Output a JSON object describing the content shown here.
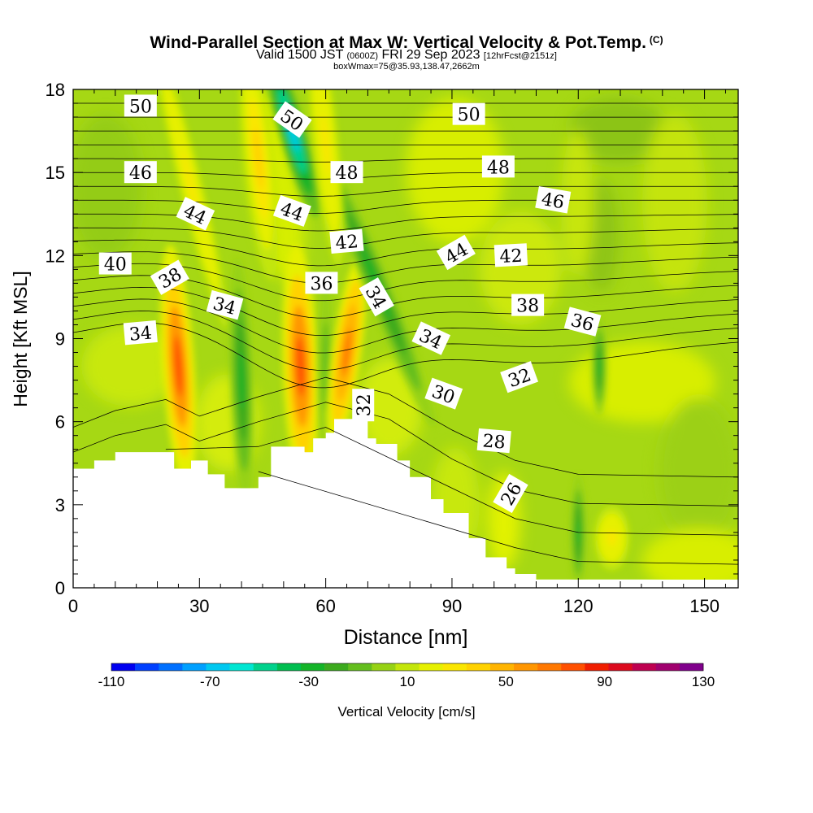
{
  "header": {
    "title": "Wind-Parallel Section at Max W: Vertical Velocity & Pot.Temp.",
    "title_mark": "(C)",
    "valid_main": "Valid 1500 JST",
    "valid_utc": "(0600Z)",
    "valid_date": "FRI 29 Sep 2023",
    "forecast_info": "[12hrFcst@2151z]",
    "box_info": "boxWmax=75@35.93,138.47,2662m"
  },
  "chart_data": {
    "type": "heatmap",
    "xlabel": "Distance [nm]",
    "ylabel": "Height [Kft MSL]",
    "xlim": [
      0,
      158
    ],
    "ylim": [
      0,
      18
    ],
    "x_ticks": [
      0,
      30,
      60,
      90,
      120,
      150
    ],
    "y_ticks": [
      0,
      3,
      6,
      9,
      12,
      15,
      18
    ],
    "colorbar": {
      "label": "Vertical Velocity [cm/s]",
      "range": [
        -110,
        130
      ],
      "step": 10,
      "tick_labels": [
        "-110",
        "-70",
        "-30",
        "10",
        "50",
        "90",
        "130"
      ],
      "colors": [
        "#0000f0",
        "#0040ff",
        "#0070ff",
        "#00a0ff",
        "#00c8f0",
        "#00e6d2",
        "#00d28c",
        "#00be50",
        "#14b428",
        "#3caa1e",
        "#64be1e",
        "#96d214",
        "#c3e60a",
        "#e6f000",
        "#fae600",
        "#ffd200",
        "#ffb400",
        "#ff9600",
        "#ff7800",
        "#ff5000",
        "#f01e00",
        "#dc0a1e",
        "#be0050",
        "#a0006e",
        "#80008c"
      ]
    },
    "terrain_height_kft": [
      [
        0,
        4.3
      ],
      [
        5,
        4.6
      ],
      [
        10,
        4.9
      ],
      [
        20,
        4.9
      ],
      [
        24,
        4.3
      ],
      [
        28,
        4.6
      ],
      [
        32,
        4.1
      ],
      [
        36,
        3.6
      ],
      [
        41,
        3.6
      ],
      [
        44,
        4.0
      ],
      [
        47,
        5.1
      ],
      [
        52,
        5.1
      ],
      [
        55,
        4.9
      ],
      [
        57,
        5.4
      ],
      [
        60,
        5.6
      ],
      [
        62,
        6.1
      ],
      [
        67,
        6.2
      ],
      [
        70,
        5.4
      ],
      [
        72,
        5.2
      ],
      [
        77,
        4.6
      ],
      [
        80,
        4.0
      ],
      [
        85,
        3.2
      ],
      [
        88,
        2.7
      ],
      [
        94,
        1.8
      ],
      [
        98,
        1.1
      ],
      [
        103,
        0.7
      ],
      [
        105,
        0.5
      ],
      [
        110,
        0.3
      ],
      [
        158,
        0.3
      ]
    ],
    "velocity_features": [
      {
        "x_nm": 25,
        "z_kft": 8.0,
        "value_cms": 80
      },
      {
        "x_nm": 28,
        "z_kft": 14.5,
        "value_cms": 30
      },
      {
        "x_nm": 40,
        "z_kft": 7.5,
        "value_cms": -30
      },
      {
        "x_nm": 44,
        "z_kft": 15.5,
        "value_cms": 40
      },
      {
        "x_nm": 52,
        "z_kft": 16.5,
        "value_cms": -70
      },
      {
        "x_nm": 54,
        "z_kft": 8.0,
        "value_cms": 80
      },
      {
        "x_nm": 60,
        "z_kft": 8.0,
        "value_cms": -10
      },
      {
        "x_nm": 65,
        "z_kft": 8.5,
        "value_cms": 75
      },
      {
        "x_nm": 72,
        "z_kft": 11.0,
        "value_cms": -30
      },
      {
        "x_nm": 60,
        "z_kft": 16.0,
        "value_cms": 30
      },
      {
        "x_nm": 125,
        "z_kft": 8.0,
        "value_cms": -30
      },
      {
        "x_nm": 120,
        "z_kft": 2.0,
        "value_cms": -30
      },
      {
        "x_nm": 128,
        "z_kft": 1.8,
        "value_cms": 30
      }
    ],
    "theta_labels": [
      {
        "text": "50",
        "x_nm": 16,
        "z_kft": 17.4
      },
      {
        "text": "50",
        "x_nm": 52,
        "z_kft": 16.9
      },
      {
        "text": "50",
        "x_nm": 94,
        "z_kft": 17.1
      },
      {
        "text": "46",
        "x_nm": 16,
        "z_kft": 15.0
      },
      {
        "text": "48",
        "x_nm": 65,
        "z_kft": 15.0
      },
      {
        "text": "48",
        "x_nm": 101,
        "z_kft": 15.2
      },
      {
        "text": "46",
        "x_nm": 114,
        "z_kft": 14.0
      },
      {
        "text": "44",
        "x_nm": 29,
        "z_kft": 13.5
      },
      {
        "text": "44",
        "x_nm": 52,
        "z_kft": 13.6
      },
      {
        "text": "42",
        "x_nm": 65,
        "z_kft": 12.5
      },
      {
        "text": "44",
        "x_nm": 91,
        "z_kft": 12.1
      },
      {
        "text": "42",
        "x_nm": 104,
        "z_kft": 12.0
      },
      {
        "text": "40",
        "x_nm": 10,
        "z_kft": 11.7
      },
      {
        "text": "38",
        "x_nm": 23,
        "z_kft": 11.2
      },
      {
        "text": "36",
        "x_nm": 59,
        "z_kft": 11.0
      },
      {
        "text": "34",
        "x_nm": 72,
        "z_kft": 10.5
      },
      {
        "text": "34",
        "x_nm": 36,
        "z_kft": 10.2
      },
      {
        "text": "38",
        "x_nm": 108,
        "z_kft": 10.2
      },
      {
        "text": "36",
        "x_nm": 121,
        "z_kft": 9.6
      },
      {
        "text": "34",
        "x_nm": 16,
        "z_kft": 9.2
      },
      {
        "text": "34",
        "x_nm": 85,
        "z_kft": 9.0
      },
      {
        "text": "32",
        "x_nm": 106,
        "z_kft": 7.6
      },
      {
        "text": "30",
        "x_nm": 88,
        "z_kft": 7.0
      },
      {
        "text": "32",
        "x_nm": 69,
        "z_kft": 6.6
      },
      {
        "text": "28",
        "x_nm": 100,
        "z_kft": 5.3
      },
      {
        "text": "26",
        "x_nm": 104,
        "z_kft": 3.4
      }
    ]
  }
}
